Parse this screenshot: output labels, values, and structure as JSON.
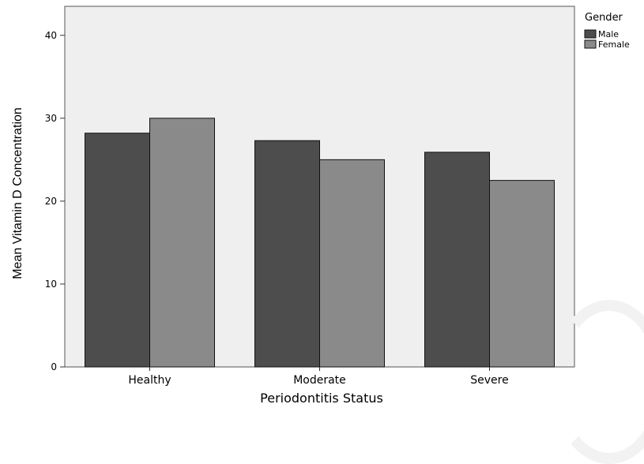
{
  "chart_data": {
    "type": "bar",
    "title": "",
    "xlabel": "Periodontitis Status",
    "ylabel": "Mean Vitamin D Concentration",
    "categories": [
      "Healthy",
      "Moderate",
      "Severe"
    ],
    "series": [
      {
        "name": "Male",
        "values": [
          28.2,
          27.3,
          25.9
        ],
        "color": "#4d4d4d"
      },
      {
        "name": "Female",
        "values": [
          30.0,
          25.0,
          22.5
        ],
        "color": "#8a8a8a"
      }
    ],
    "ylim": [
      0,
      43.5
    ],
    "yticks": [
      0,
      10,
      20,
      30,
      40
    ],
    "grid": false,
    "plot_background": "#efefef",
    "legend": {
      "title": "Gender",
      "position": "right"
    }
  }
}
